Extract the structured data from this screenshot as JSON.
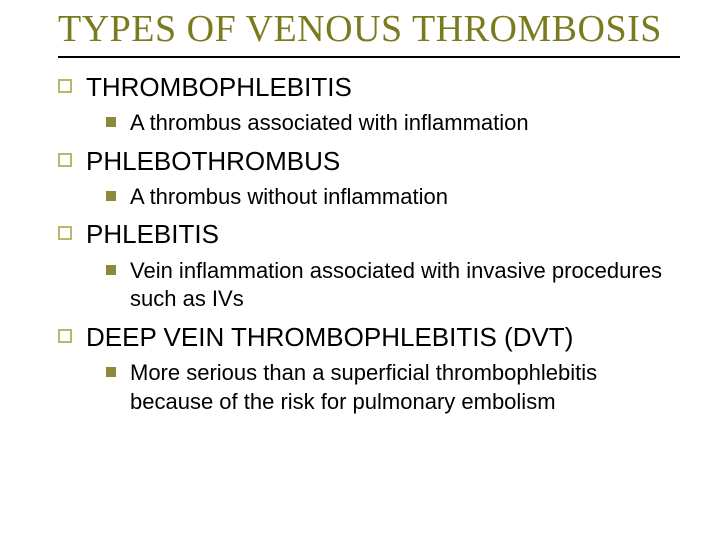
{
  "slide": {
    "title": "TYPES OF VENOUS THROMBOSIS",
    "title_color": "#7a7a1f",
    "title_fontsize": 38,
    "rule_color": "#000000",
    "background_color": "#ffffff",
    "bullet1_border_color": "#b8b86b",
    "bullet2_fill_color": "#8a8a3a",
    "level1_fontsize": 26,
    "level2_fontsize": 22,
    "text_color": "#000000",
    "items": [
      {
        "label": "THROMBOPHLEBITIS",
        "sub": [
          {
            "label": "A thrombus associated with inflammation"
          }
        ]
      },
      {
        "label": "PHLEBOTHROMBUS",
        "sub": [
          {
            "label": "A thrombus without inflammation"
          }
        ]
      },
      {
        "label": "PHLEBITIS",
        "sub": [
          {
            "label": "Vein inflammation associated with invasive procedures such as IVs"
          }
        ]
      },
      {
        "label": "DEEP VEIN THROMBOPHLEBITIS (DVT)",
        "sub": [
          {
            "label": "More serious than a superficial thrombophlebitis because of the risk for pulmonary embolism"
          }
        ]
      }
    ]
  }
}
